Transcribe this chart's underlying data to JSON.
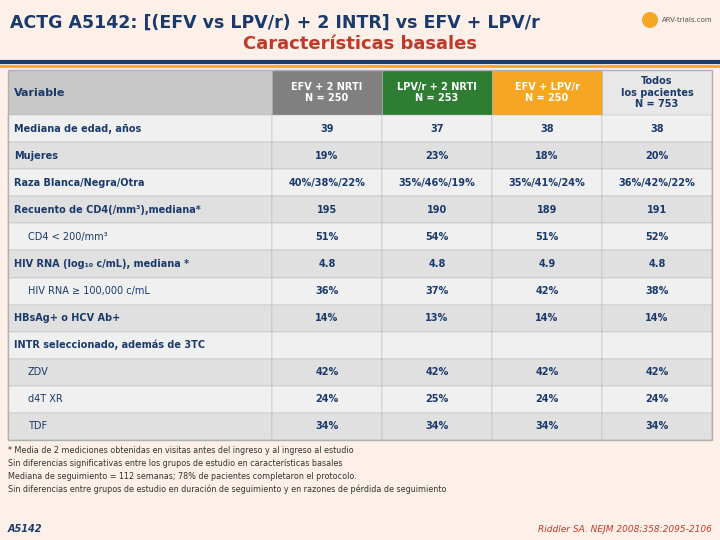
{
  "title": "ACTG A5142: [(EFV vs LPV/r) + 2 INTR] vs EFV + LPV/r",
  "subtitle": "Características basales",
  "bg_color": "#fdf0e8",
  "title_color": "#1a3a6b",
  "subtitle_color": "#c0392b",
  "header_bar_colors": [
    "#808080",
    "#2e7d32",
    "#f5a623",
    "#e8e8e8"
  ],
  "col_headers": [
    "EFV + 2 NRTI\nN = 250",
    "LPV/r + 2 NRTI\nN = 253",
    "EFV + LPV/r\nN = 250",
    "Todos\nlos pacientes\nN = 753"
  ],
  "col_header_text_colors": [
    "#ffffff",
    "#ffffff",
    "#ffffff",
    "#1a3a6b"
  ],
  "rows": [
    {
      "label": "Mediana de edad, años",
      "indent": 0,
      "values": [
        "39",
        "37",
        "38",
        "38"
      ],
      "shaded": false
    },
    {
      "label": "Mujeres",
      "indent": 0,
      "values": [
        "19%",
        "23%",
        "18%",
        "20%"
      ],
      "shaded": true
    },
    {
      "label": "Raza Blanca/Negra/Otra",
      "indent": 0,
      "values": [
        "40%/38%/22%",
        "35%/46%/19%",
        "35%/41%/24%",
        "36%/42%/22%"
      ],
      "shaded": false
    },
    {
      "label": "Recuento de CD4(/mm³),mediana*",
      "indent": 0,
      "values": [
        "195",
        "190",
        "189",
        "191"
      ],
      "shaded": true
    },
    {
      "label": "CD4 < 200/mm³",
      "indent": 1,
      "values": [
        "51%",
        "54%",
        "51%",
        "52%"
      ],
      "shaded": false
    },
    {
      "label": "HIV RNA (log₁₀ c/mL), mediana *",
      "indent": 0,
      "values": [
        "4.8",
        "4.8",
        "4.9",
        "4.8"
      ],
      "shaded": true
    },
    {
      "label": "HIV RNA ≥ 100,000 c/mL",
      "indent": 1,
      "values": [
        "36%",
        "37%",
        "42%",
        "38%"
      ],
      "shaded": false
    },
    {
      "label": "HBsAg+ o HCV Ab+",
      "indent": 0,
      "values": [
        "14%",
        "13%",
        "14%",
        "14%"
      ],
      "shaded": true
    },
    {
      "label": "INTR seleccionado, además de 3TC",
      "indent": 0,
      "values": [
        "",
        "",
        "",
        ""
      ],
      "shaded": false
    },
    {
      "label": "ZDV",
      "indent": 1,
      "values": [
        "42%",
        "42%",
        "42%",
        "42%"
      ],
      "shaded": true
    },
    {
      "label": "d4T XR",
      "indent": 1,
      "values": [
        "24%",
        "25%",
        "24%",
        "24%"
      ],
      "shaded": false
    },
    {
      "label": "TDF",
      "indent": 1,
      "values": [
        "34%",
        "34%",
        "34%",
        "34%"
      ],
      "shaded": true
    }
  ],
  "footnotes": [
    "* Media de 2 mediciones obtenidas en visitas antes del ingreso y al ingreso al estudio",
    "Sin diferencias significativas entre los grupos de estudio en características basales",
    "Mediana de seguimiento = 112 semanas; 78% de pacientes completaron el protocolo.",
    "Sin diferencias entre grupos de estudio en duración de seguimiento y en razones de pérdida de seguimiento"
  ],
  "footer_left": "A5142",
  "footer_right": "Riddler SA. NEJM 2008;358:2095-2106",
  "shaded_row_color": "#e0e0e0",
  "unshaded_row_color": "#f0f0f0",
  "border_color": "#b0b0b0",
  "label_col_color": "#c8c8c8",
  "divider_color1": "#1a3a6b",
  "divider_color2": "#f5a623"
}
